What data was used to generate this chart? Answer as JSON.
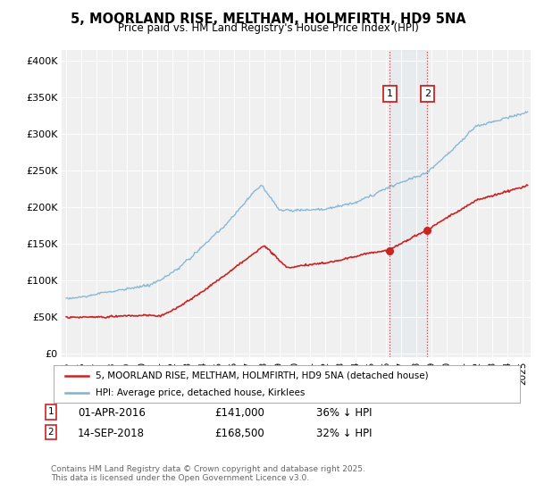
{
  "title": "5, MOORLAND RISE, MELTHAM, HOLMFIRTH, HD9 5NA",
  "subtitle": "Price paid vs. HM Land Registry's House Price Index (HPI)",
  "ylabel_ticks": [
    "£0",
    "£50K",
    "£100K",
    "£150K",
    "£200K",
    "£250K",
    "£300K",
    "£350K",
    "£400K"
  ],
  "ytick_values": [
    0,
    50000,
    100000,
    150000,
    200000,
    250000,
    300000,
    350000,
    400000
  ],
  "ylim": [
    -5000,
    415000
  ],
  "xlim_start": 1994.7,
  "xlim_end": 2025.5,
  "hpi_color": "#7ab3d4",
  "price_color": "#cc2222",
  "marker1_date": 2016.25,
  "marker2_date": 2018.72,
  "marker1_price": 141000,
  "marker2_price": 168500,
  "legend_label1": "5, MOORLAND RISE, MELTHAM, HOLMFIRTH, HD9 5NA (detached house)",
  "legend_label2": "HPI: Average price, detached house, Kirklees",
  "footnote": "Contains HM Land Registry data © Crown copyright and database right 2025.\nThis data is licensed under the Open Government Licence v3.0.",
  "background_color": "#ffffff",
  "plot_bg_color": "#f0f0f0"
}
